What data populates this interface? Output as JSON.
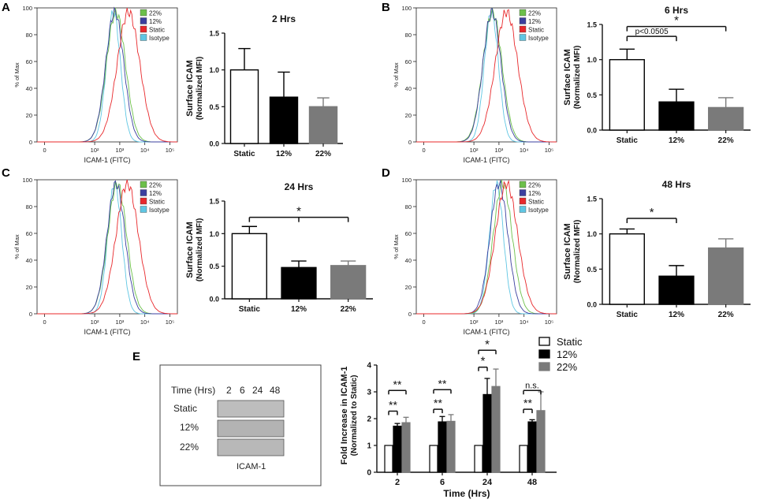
{
  "colors": {
    "green": "#6cc04a",
    "blue": "#3b3f9f",
    "red": "#e8282b",
    "cyan": "#5fc6e3",
    "black": "#000000",
    "gray": "#7a7a7a",
    "white": "#ffffff"
  },
  "histogram": {
    "ylabel": "% of Max",
    "xlabel": "ICAM-1 (FITC)",
    "yticks": [
      "0",
      "20",
      "40",
      "60",
      "80",
      "100"
    ],
    "xticks": [
      "0",
      "10²",
      "10³",
      "10⁴",
      "10⁵"
    ],
    "legend": [
      "22%",
      "12%",
      "Static",
      "Isotype"
    ],
    "peaks": {
      "A": {
        "iso": 2.75,
        "g12": 2.8,
        "g22": 2.85,
        "stat": 3.35
      },
      "B": {
        "iso": 2.7,
        "g12": 2.72,
        "g22": 2.74,
        "stat": 3.3
      },
      "C": {
        "iso": 2.8,
        "g12": 2.85,
        "g22": 2.9,
        "stat": 3.3
      },
      "D": {
        "iso": 2.9,
        "g12": 3.0,
        "g22": 3.15,
        "stat": 3.3
      }
    }
  },
  "chart_data": [
    {
      "panel": "A",
      "type": "bar",
      "title": "2 Hrs",
      "ylabel": "Surface ICAM (Normalized MFI)",
      "categories": [
        "Static",
        "12%",
        "22%"
      ],
      "values": [
        1.0,
        0.63,
        0.5
      ],
      "errors": [
        0.29,
        0.34,
        0.12
      ],
      "ylim": [
        0,
        1.5
      ],
      "yticks": [
        "0.0",
        "0.5",
        "1.0",
        "1.5"
      ],
      "annotations": []
    },
    {
      "panel": "B",
      "type": "bar",
      "title": "6 Hrs",
      "ylabel": "Surface ICAM (Normalized MFI)",
      "categories": [
        "Static",
        "12%",
        "22%"
      ],
      "values": [
        1.0,
        0.4,
        0.32
      ],
      "errors": [
        0.15,
        0.18,
        0.14
      ],
      "ylim": [
        0,
        1.5
      ],
      "yticks": [
        "0.0",
        "0.5",
        "1.0",
        "1.5"
      ],
      "annotations": [
        {
          "text": "p<0.0505",
          "from": 0,
          "to": 1,
          "level": 1.33
        },
        {
          "text": "*",
          "from": 0,
          "to": 2,
          "level": 1.47
        }
      ]
    },
    {
      "panel": "C",
      "type": "bar",
      "title": "24 Hrs",
      "ylabel": "Surface ICAM (Normalized MFI)",
      "categories": [
        "Static",
        "12%",
        "22%"
      ],
      "values": [
        1.0,
        0.48,
        0.51
      ],
      "errors": [
        0.11,
        0.1,
        0.07
      ],
      "ylim": [
        0,
        1.5
      ],
      "yticks": [
        "0.0",
        "0.5",
        "1.0",
        "1.5"
      ],
      "annotations": [
        {
          "text": "*",
          "from": 0,
          "to": 2,
          "level": 1.25,
          "tick_mid": true
        }
      ]
    },
    {
      "panel": "D",
      "type": "bar",
      "title": "48 Hrs",
      "ylabel": "Surface ICAM (Normalized MFI)",
      "categories": [
        "Static",
        "12%",
        "22%"
      ],
      "values": [
        1.0,
        0.4,
        0.8
      ],
      "errors": [
        0.07,
        0.15,
        0.13
      ],
      "ylim": [
        0,
        1.5
      ],
      "yticks": [
        "0.0",
        "0.5",
        "1.0",
        "1.5"
      ],
      "annotations": [
        {
          "text": "*",
          "from": 0,
          "to": 1,
          "level": 1.22
        }
      ]
    },
    {
      "panel": "E",
      "type": "bar",
      "title": "",
      "xlabel": "Time (Hrs)",
      "ylabel": "Fold Increase in ICAM-1 (Normalized to Static)",
      "categories": [
        "2",
        "6",
        "24",
        "48"
      ],
      "series": [
        {
          "name": "Static",
          "values": [
            1,
            1,
            1,
            1
          ],
          "errors": [
            0,
            0,
            0,
            0
          ]
        },
        {
          "name": "12%",
          "values": [
            1.72,
            1.88,
            2.9,
            1.88
          ],
          "errors": [
            0.1,
            0.2,
            0.6,
            0.08
          ]
        },
        {
          "name": "22%",
          "values": [
            1.85,
            1.9,
            3.2,
            2.3
          ],
          "errors": [
            0.2,
            0.25,
            0.65,
            0.7
          ]
        }
      ],
      "ylim": [
        0,
        4
      ],
      "yticks": [
        "0",
        "1",
        "2",
        "3",
        "4"
      ],
      "annotations": [
        {
          "group": 0,
          "lower": "**",
          "upper": "**"
        },
        {
          "group": 1,
          "lower": "**",
          "upper": "**"
        },
        {
          "group": 2,
          "lower": "*",
          "upper": "*"
        },
        {
          "group": 3,
          "lower": "**",
          "upper": "n.s."
        }
      ]
    }
  ],
  "panels": {
    "A": "A",
    "B": "B",
    "C": "C",
    "D": "D",
    "E": "E"
  },
  "blot": {
    "header": "Time (Hrs)",
    "times": [
      "2",
      "6",
      "24",
      "48"
    ],
    "rows": [
      "Static",
      "12%",
      "22%"
    ],
    "caption": "ICAM-1"
  }
}
